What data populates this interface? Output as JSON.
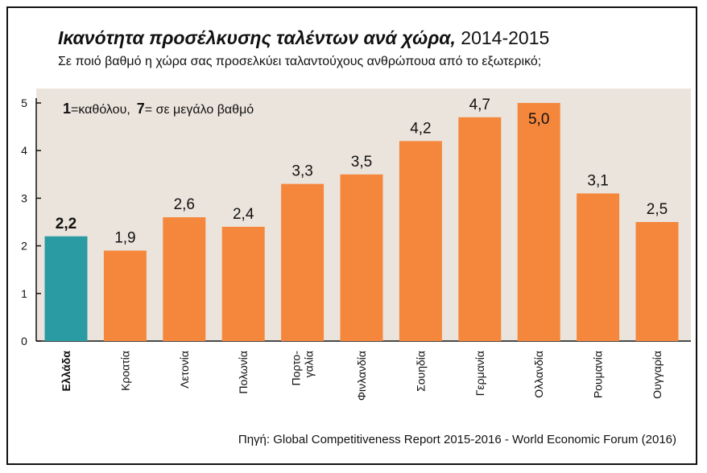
{
  "header": {
    "title_main": "Ικανότητα προσέλκυσης ταλέντων ανά χώρα,",
    "title_years": "2014-2015",
    "subtitle": "Σε ποιό βαθμό η χώρα σας προσελκύει ταλαντούχους ανθρώπουα από το εξωτερικό;"
  },
  "note": {
    "low_key": "1",
    "low_text": "=καθόλου,",
    "high_key": "7",
    "high_text": "= σε μεγάλο βαθμό"
  },
  "source": "Πηγή: Global Competitiveness Report 2015-2016 - World Economic Forum (2016)",
  "colors": {
    "plot_background": "#ebe4dc",
    "bar_default": "#f5873c",
    "bar_highlight": "#2a9aa3"
  },
  "chart_data": {
    "type": "bar",
    "categories": [
      [
        "Ελλάδα"
      ],
      [
        "Κροατία"
      ],
      [
        "Λετονία"
      ],
      [
        "Πολωνία"
      ],
      [
        "Πορτο-",
        "γαλία"
      ],
      [
        "Φινλανδία"
      ],
      [
        "Σουηδία"
      ],
      [
        "Γερμανία"
      ],
      [
        "Ολλανδία"
      ],
      [
        "Ρουμανία"
      ],
      [
        "Ουγγαρία"
      ]
    ],
    "values": [
      2.2,
      1.9,
      2.6,
      2.4,
      3.3,
      3.5,
      4.2,
      4.7,
      5.0,
      3.1,
      2.5
    ],
    "value_labels": [
      "2,2",
      "1,9",
      "2,6",
      "2,4",
      "3,3",
      "3,5",
      "4,2",
      "4,7",
      "5,0",
      "3,1",
      "2,5"
    ],
    "highlight_index": 0,
    "ylim": [
      0,
      5
    ],
    "yticks": [
      0,
      1,
      2,
      3,
      4,
      5
    ],
    "ytick_labels": [
      "0",
      "1",
      "2",
      "3",
      "4",
      "5"
    ],
    "xlabel": "",
    "ylabel": "",
    "grid": false,
    "legend": "none"
  }
}
